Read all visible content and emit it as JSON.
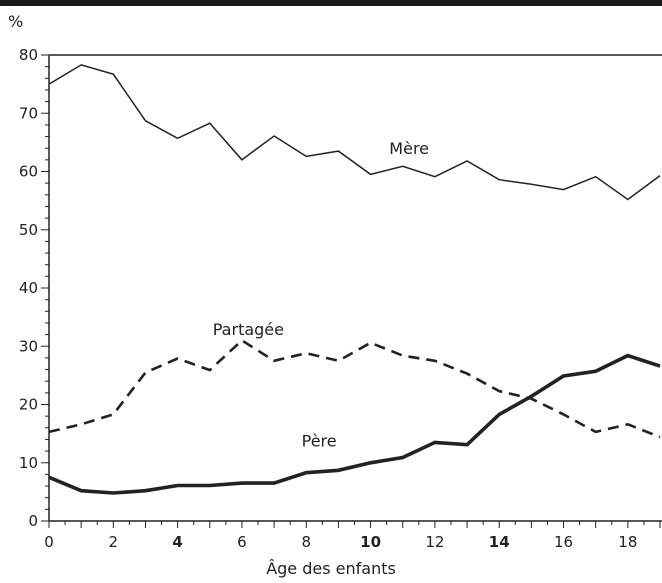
{
  "chart_data": {
    "type": "line",
    "title": "",
    "xlabel": "Âge des enfants",
    "ylabel": "%",
    "xlim": [
      0,
      19
    ],
    "ylim": [
      0,
      80
    ],
    "x_ticks": [
      0,
      2,
      4,
      6,
      8,
      10,
      12,
      14,
      16,
      18
    ],
    "x_tick_labels": [
      "0",
      "2",
      "4",
      "6",
      "8",
      "10",
      "12",
      "14",
      "16",
      "18"
    ],
    "x_tick_bold": [
      false,
      false,
      true,
      false,
      false,
      true,
      false,
      true,
      false,
      false
    ],
    "y_ticks": [
      0,
      10,
      20,
      30,
      40,
      50,
      60,
      70,
      80
    ],
    "y_tick_labels": [
      "0",
      "10",
      "20",
      "30",
      "40",
      "50",
      "60",
      "70",
      "80"
    ],
    "grid": false,
    "x": [
      0,
      1,
      2,
      3,
      4,
      5,
      6,
      7,
      8,
      9,
      10,
      11,
      12,
      13,
      14,
      15,
      16,
      17,
      18,
      19
    ],
    "series": [
      {
        "name": "Mère",
        "style": "solid",
        "color": "#222222",
        "values": [
          75,
          78.3,
          76.7,
          68.7,
          65.7,
          68.3,
          62,
          66.1,
          62.6,
          63.5,
          59.5,
          60.9,
          59.1,
          61.8,
          58.6,
          57.8,
          56.9,
          59.1,
          55.2,
          59.3
        ],
        "label_at": [
          11.2,
          64
        ]
      },
      {
        "name": "Partagée",
        "style": "dashed",
        "color": "#222222",
        "values": [
          15.3,
          16.6,
          18.3,
          25.5,
          27.9,
          25.9,
          31,
          27.5,
          28.8,
          27.5,
          30.6,
          28.4,
          27.5,
          25.3,
          22.3,
          21,
          18.3,
          15.3,
          16.6,
          14.4
        ],
        "label_at": [
          6.2,
          33
        ]
      },
      {
        "name": "Père",
        "style": "solid-thick",
        "color": "#222222",
        "values": [
          7.5,
          5.2,
          4.8,
          5.2,
          6.1,
          6.1,
          6.5,
          6.5,
          8.3,
          8.7,
          10,
          10.9,
          13.5,
          13.1,
          18.3,
          21.4,
          24.9,
          25.7,
          28.4,
          26.6
        ],
        "label_at": [
          8.4,
          13.8
        ]
      }
    ]
  }
}
